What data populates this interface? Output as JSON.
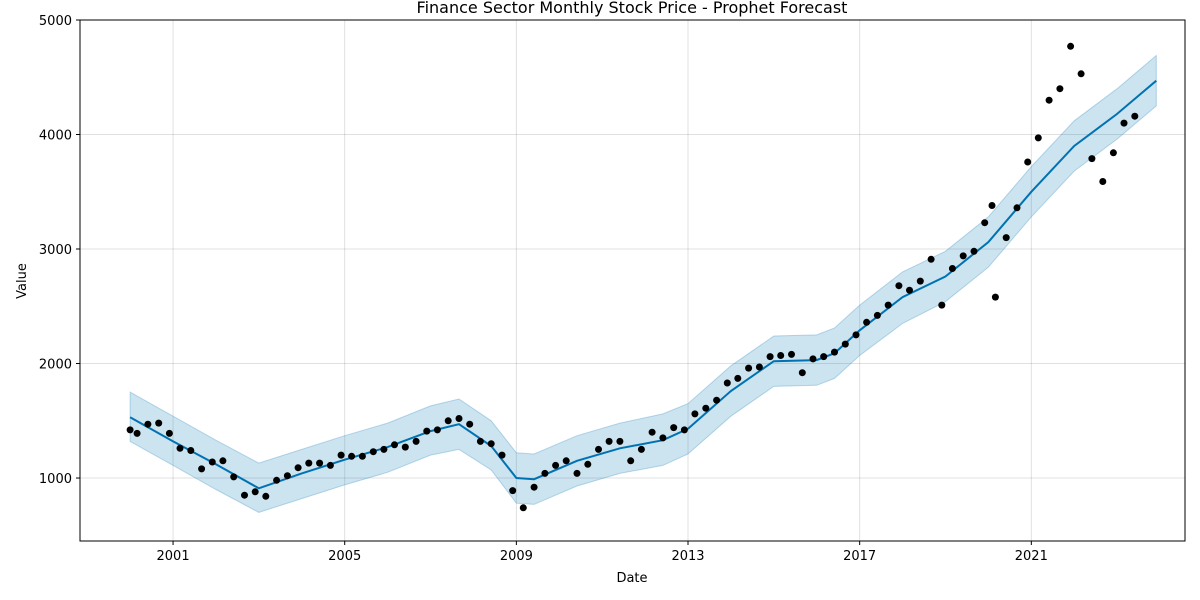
{
  "chart_data": {
    "type": "scatter",
    "title": "Finance Sector Monthly Stock Price - Prophet Forecast",
    "xlabel": "Date",
    "ylabel": "Value",
    "xlim": [
      "1998-11-01",
      "2024-08-01"
    ],
    "ylim": [
      450,
      5000
    ],
    "x_ticks": [
      "2001",
      "2005",
      "2009",
      "2013",
      "2017",
      "2021"
    ],
    "y_ticks": [
      1000,
      2000,
      3000,
      4000,
      5000
    ],
    "grid": true,
    "colors": {
      "observed": "#000000",
      "forecast": "#0072b2",
      "interval": "#0072b2"
    },
    "series": [
      {
        "kind": "observed",
        "points": [
          [
            "2000-01-01",
            1420
          ],
          [
            "2000-03-01",
            1390
          ],
          [
            "2000-06-01",
            1470
          ],
          [
            "2000-09-01",
            1480
          ],
          [
            "2000-12-01",
            1390
          ],
          [
            "2001-03-01",
            1260
          ],
          [
            "2001-06-01",
            1240
          ],
          [
            "2001-09-01",
            1080
          ],
          [
            "2001-12-01",
            1140
          ],
          [
            "2002-03-01",
            1150
          ],
          [
            "2002-06-01",
            1010
          ],
          [
            "2002-09-01",
            850
          ],
          [
            "2002-12-01",
            880
          ],
          [
            "2003-03-01",
            840
          ],
          [
            "2003-06-01",
            980
          ],
          [
            "2003-09-01",
            1020
          ],
          [
            "2003-12-01",
            1090
          ],
          [
            "2004-03-01",
            1130
          ],
          [
            "2004-06-01",
            1130
          ],
          [
            "2004-09-01",
            1110
          ],
          [
            "2004-12-01",
            1200
          ],
          [
            "2005-03-01",
            1190
          ],
          [
            "2005-06-01",
            1190
          ],
          [
            "2005-09-01",
            1230
          ],
          [
            "2005-12-01",
            1250
          ],
          [
            "2006-03-01",
            1290
          ],
          [
            "2006-06-01",
            1270
          ],
          [
            "2006-09-01",
            1320
          ],
          [
            "2006-12-01",
            1410
          ],
          [
            "2007-03-01",
            1420
          ],
          [
            "2007-06-01",
            1500
          ],
          [
            "2007-09-01",
            1520
          ],
          [
            "2007-12-01",
            1470
          ],
          [
            "2008-03-01",
            1320
          ],
          [
            "2008-06-01",
            1300
          ],
          [
            "2008-09-01",
            1200
          ],
          [
            "2008-12-01",
            890
          ],
          [
            "2009-03-01",
            740
          ],
          [
            "2009-06-01",
            920
          ],
          [
            "2009-09-01",
            1040
          ],
          [
            "2009-12-01",
            1110
          ],
          [
            "2010-03-01",
            1150
          ],
          [
            "2010-06-01",
            1040
          ],
          [
            "2010-09-01",
            1120
          ],
          [
            "2010-12-01",
            1250
          ],
          [
            "2011-03-01",
            1320
          ],
          [
            "2011-06-01",
            1320
          ],
          [
            "2011-09-01",
            1150
          ],
          [
            "2011-12-01",
            1250
          ],
          [
            "2012-03-01",
            1400
          ],
          [
            "2012-06-01",
            1350
          ],
          [
            "2012-09-01",
            1440
          ],
          [
            "2012-12-01",
            1420
          ],
          [
            "2013-03-01",
            1560
          ],
          [
            "2013-06-01",
            1610
          ],
          [
            "2013-09-01",
            1680
          ],
          [
            "2013-12-01",
            1830
          ],
          [
            "2014-03-01",
            1870
          ],
          [
            "2014-06-01",
            1960
          ],
          [
            "2014-09-01",
            1970
          ],
          [
            "2014-12-01",
            2060
          ],
          [
            "2015-03-01",
            2070
          ],
          [
            "2015-06-01",
            2080
          ],
          [
            "2015-09-01",
            1920
          ],
          [
            "2015-12-01",
            2040
          ],
          [
            "2016-03-01",
            2060
          ],
          [
            "2016-06-01",
            2100
          ],
          [
            "2016-09-01",
            2170
          ],
          [
            "2016-12-01",
            2250
          ],
          [
            "2017-03-01",
            2360
          ],
          [
            "2017-06-01",
            2420
          ],
          [
            "2017-09-01",
            2510
          ],
          [
            "2017-12-01",
            2680
          ],
          [
            "2018-03-01",
            2640
          ],
          [
            "2018-06-01",
            2720
          ],
          [
            "2018-09-01",
            2910
          ],
          [
            "2018-12-01",
            2510
          ],
          [
            "2019-03-01",
            2830
          ],
          [
            "2019-06-01",
            2940
          ],
          [
            "2019-09-01",
            2980
          ],
          [
            "2019-12-01",
            3230
          ],
          [
            "2020-02-01",
            3380
          ],
          [
            "2020-03-01",
            2580
          ],
          [
            "2020-06-01",
            3100
          ],
          [
            "2020-09-01",
            3360
          ],
          [
            "2020-12-01",
            3760
          ],
          [
            "2021-03-01",
            3970
          ],
          [
            "2021-06-01",
            4300
          ],
          [
            "2021-09-01",
            4400
          ],
          [
            "2021-12-01",
            4770
          ],
          [
            "2022-03-01",
            4530
          ],
          [
            "2022-06-01",
            3790
          ],
          [
            "2022-09-01",
            3590
          ],
          [
            "2022-12-01",
            3840
          ],
          [
            "2023-03-01",
            4100
          ],
          [
            "2023-06-01",
            4160
          ]
        ]
      },
      {
        "kind": "forecast",
        "points": [
          [
            "2000-01-01",
            1530
          ],
          [
            "2001-01-01",
            1320
          ],
          [
            "2002-01-01",
            1120
          ],
          [
            "2003-01-01",
            910
          ],
          [
            "2004-01-01",
            1040
          ],
          [
            "2005-01-01",
            1160
          ],
          [
            "2006-01-01",
            1270
          ],
          [
            "2007-01-01",
            1410
          ],
          [
            "2007-09-01",
            1470
          ],
          [
            "2008-06-01",
            1280
          ],
          [
            "2009-01-01",
            1000
          ],
          [
            "2009-06-01",
            990
          ],
          [
            "2010-06-01",
            1150
          ],
          [
            "2011-06-01",
            1260
          ],
          [
            "2012-06-01",
            1330
          ],
          [
            "2013-01-01",
            1430
          ],
          [
            "2014-01-01",
            1760
          ],
          [
            "2015-01-01",
            2020
          ],
          [
            "2016-01-01",
            2030
          ],
          [
            "2016-06-01",
            2090
          ],
          [
            "2017-01-01",
            2290
          ],
          [
            "2018-01-01",
            2580
          ],
          [
            "2019-01-01",
            2760
          ],
          [
            "2020-01-01",
            3060
          ],
          [
            "2021-01-01",
            3500
          ],
          [
            "2022-01-01",
            3900
          ],
          [
            "2023-01-01",
            4180
          ],
          [
            "2023-12-01",
            4470
          ]
        ]
      },
      {
        "kind": "interval",
        "points": [
          [
            "2000-01-01",
            1320,
            1750
          ],
          [
            "2001-01-01",
            1110,
            1540
          ],
          [
            "2002-01-01",
            900,
            1330
          ],
          [
            "2003-01-01",
            700,
            1130
          ],
          [
            "2004-01-01",
            820,
            1250
          ],
          [
            "2005-01-01",
            940,
            1370
          ],
          [
            "2006-01-01",
            1050,
            1480
          ],
          [
            "2007-01-01",
            1200,
            1630
          ],
          [
            "2007-09-01",
            1250,
            1690
          ],
          [
            "2008-06-01",
            1070,
            1500
          ],
          [
            "2009-01-01",
            780,
            1220
          ],
          [
            "2009-06-01",
            770,
            1210
          ],
          [
            "2010-06-01",
            930,
            1370
          ],
          [
            "2011-06-01",
            1040,
            1480
          ],
          [
            "2012-06-01",
            1110,
            1560
          ],
          [
            "2013-01-01",
            1210,
            1650
          ],
          [
            "2014-01-01",
            1540,
            1980
          ],
          [
            "2015-01-01",
            1800,
            2240
          ],
          [
            "2016-01-01",
            1810,
            2250
          ],
          [
            "2016-06-01",
            1870,
            2310
          ],
          [
            "2017-01-01",
            2070,
            2510
          ],
          [
            "2018-01-01",
            2350,
            2800
          ],
          [
            "2019-01-01",
            2540,
            2980
          ],
          [
            "2020-01-01",
            2840,
            3280
          ],
          [
            "2021-01-01",
            3280,
            3720
          ],
          [
            "2022-01-01",
            3680,
            4120
          ],
          [
            "2023-01-01",
            3960,
            4400
          ],
          [
            "2023-12-01",
            4250,
            4690
          ]
        ]
      }
    ]
  }
}
